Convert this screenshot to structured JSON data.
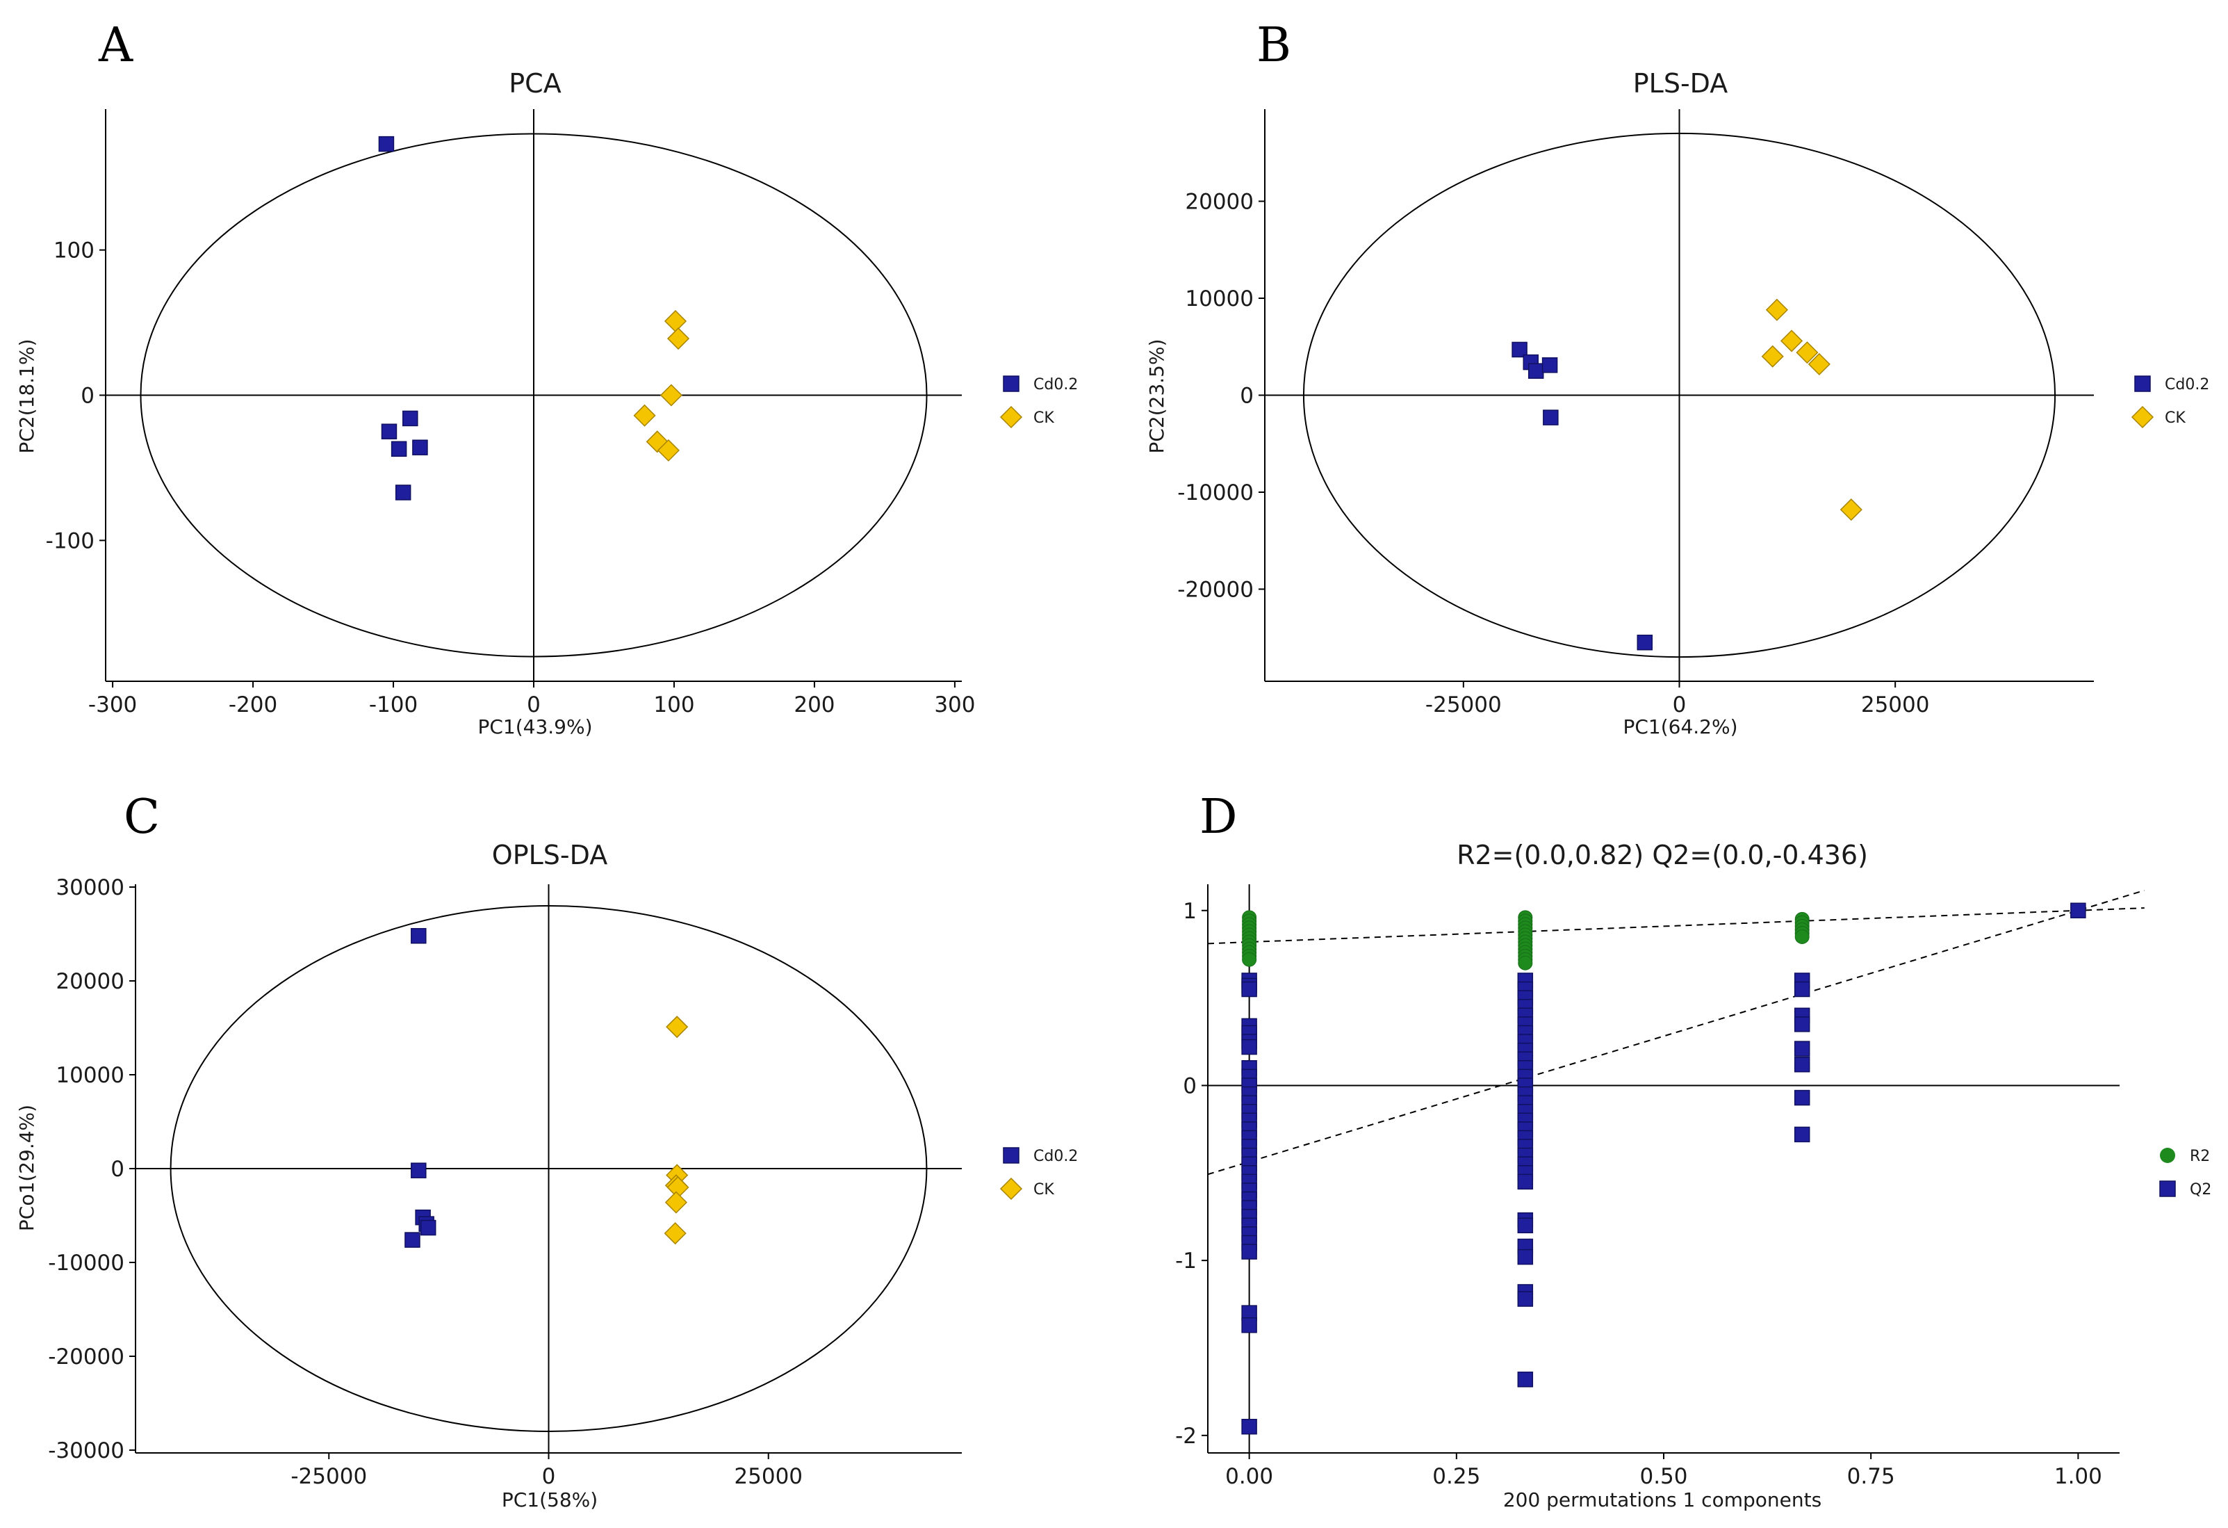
{
  "colors": {
    "cd_fill": "#1f1f9e",
    "cd_stroke": "#101060",
    "ck_fill": "#f5c400",
    "ck_stroke": "#a88400",
    "r2_fill": "#1e8a1e",
    "axis": "#000000"
  },
  "chart_data": [
    {
      "panel": "A",
      "type": "scatter",
      "title": "PCA",
      "xlabel": "PC1(43.9%)",
      "ylabel": "PC2(18.1%)",
      "xlim": [
        -305,
        305
      ],
      "ylim": [
        -197,
        197
      ],
      "xticks": [
        -300,
        -200,
        -100,
        0,
        100,
        200,
        300
      ],
      "yticks": [
        -100,
        0,
        100
      ],
      "ellipse": {
        "cx": 0,
        "cy": 0,
        "rx": 280,
        "ry": 180
      },
      "legend": [
        "Cd0.2",
        "CK"
      ],
      "series": [
        {
          "name": "Cd0.2",
          "marker": "square",
          "points": [
            [
              -105,
              173
            ],
            [
              -103,
              -25
            ],
            [
              -88,
              -16
            ],
            [
              -96,
              -37
            ],
            [
              -81,
              -36
            ],
            [
              -93,
              -67
            ]
          ]
        },
        {
          "name": "CK",
          "marker": "diamond",
          "points": [
            [
              101,
              51
            ],
            [
              103,
              39
            ],
            [
              98,
              0
            ],
            [
              79,
              -14
            ],
            [
              88,
              -32
            ],
            [
              96,
              -38
            ]
          ]
        }
      ]
    },
    {
      "panel": "B",
      "type": "scatter",
      "title": "PLS-DA",
      "xlabel": "PC1(64.2%)",
      "ylabel": "PC2(23.5%)",
      "xlim": [
        -48000,
        48000
      ],
      "ylim": [
        -29500,
        29500
      ],
      "xticks": [
        -25000,
        0,
        25000
      ],
      "yticks": [
        -20000,
        -10000,
        0,
        10000,
        20000
      ],
      "ellipse": {
        "cx": 0,
        "cy": 0,
        "rx": 43500,
        "ry": 27000
      },
      "legend": [
        "Cd0.2",
        "CK"
      ],
      "series": [
        {
          "name": "Cd0.2",
          "marker": "square",
          "points": [
            [
              -18500,
              4700
            ],
            [
              -17200,
              3400
            ],
            [
              -16600,
              2500
            ],
            [
              -15000,
              3100
            ],
            [
              -14900,
              -2300
            ],
            [
              -4000,
              -25500
            ]
          ]
        },
        {
          "name": "CK",
          "marker": "diamond",
          "points": [
            [
              11300,
              8800
            ],
            [
              13000,
              5600
            ],
            [
              10800,
              4000
            ],
            [
              14800,
              4400
            ],
            [
              16200,
              3200
            ],
            [
              19900,
              -11800
            ]
          ]
        }
      ]
    },
    {
      "panel": "C",
      "type": "scatter",
      "title": "OPLS-DA",
      "xlabel": "PC1(58%)",
      "ylabel": "PCo1(29.4%)",
      "xlim": [
        -47000,
        47000
      ],
      "ylim": [
        -30300,
        30300
      ],
      "xticks": [
        -25000,
        0,
        25000
      ],
      "yticks": [
        -30000,
        -20000,
        -10000,
        0,
        10000,
        20000,
        30000
      ],
      "ellipse": {
        "cx": 0,
        "cy": 0,
        "rx": 43000,
        "ry": 28000
      },
      "legend": [
        "Cd0.2",
        "CK"
      ],
      "series": [
        {
          "name": "Cd0.2",
          "marker": "square",
          "points": [
            [
              -14800,
              24800
            ],
            [
              -14800,
              -200
            ],
            [
              -14300,
              -5200
            ],
            [
              -13900,
              -5900
            ],
            [
              -13700,
              -6300
            ],
            [
              -15500,
              -7600
            ]
          ]
        },
        {
          "name": "CK",
          "marker": "diamond",
          "points": [
            [
              14600,
              15100
            ],
            [
              14600,
              -700
            ],
            [
              14500,
              -1800
            ],
            [
              14700,
              -2000
            ],
            [
              14500,
              -3600
            ],
            [
              14400,
              -6900
            ]
          ]
        }
      ]
    },
    {
      "panel": "D",
      "type": "scatter",
      "title": "R2=(0.0,0.82)    Q2=(0.0,-0.436)",
      "xlabel": "200 permutations 1 components",
      "ylabel": "",
      "xlim": [
        -0.05,
        1.05
      ],
      "ylim": [
        -2.1,
        1.15
      ],
      "xticks": [
        0.0,
        0.25,
        0.5,
        0.75,
        1.0
      ],
      "xtick_labels": [
        "0.00",
        "0.25",
        "0.50",
        "0.75",
        "1.00"
      ],
      "yticks": [
        -2,
        -1,
        0,
        1
      ],
      "legend": [
        "R2",
        "Q2"
      ],
      "hline": 0,
      "vline": 0,
      "regression_lines": [
        {
          "name": "R2",
          "intercept": 0.82,
          "slope": 0.18
        },
        {
          "name": "Q2",
          "intercept": -0.436,
          "slope": 1.436
        }
      ],
      "series": [
        {
          "name": "R2",
          "marker": "circle",
          "points": [
            [
              0,
              0.96
            ],
            [
              0,
              0.94
            ],
            [
              0,
              0.92
            ],
            [
              0,
              0.9
            ],
            [
              0,
              0.88
            ],
            [
              0,
              0.86
            ],
            [
              0,
              0.84
            ],
            [
              0,
              0.82
            ],
            [
              0,
              0.8
            ],
            [
              0,
              0.78
            ],
            [
              0,
              0.76
            ],
            [
              0,
              0.74
            ],
            [
              0,
              0.72
            ],
            [
              0.333,
              0.96
            ],
            [
              0.333,
              0.94
            ],
            [
              0.333,
              0.92
            ],
            [
              0.333,
              0.9
            ],
            [
              0.333,
              0.88
            ],
            [
              0.333,
              0.86
            ],
            [
              0.333,
              0.84
            ],
            [
              0.333,
              0.82
            ],
            [
              0.333,
              0.8
            ],
            [
              0.333,
              0.78
            ],
            [
              0.333,
              0.76
            ],
            [
              0.333,
              0.74
            ],
            [
              0.333,
              0.72
            ],
            [
              0.333,
              0.7
            ],
            [
              0.667,
              0.95
            ],
            [
              0.667,
              0.93
            ],
            [
              0.667,
              0.91
            ],
            [
              0.667,
              0.89
            ],
            [
              0.667,
              0.87
            ],
            [
              0.667,
              0.85
            ]
          ]
        },
        {
          "name": "Q2",
          "marker": "square",
          "points": [
            [
              0,
              0.6
            ],
            [
              0,
              0.57
            ],
            [
              0,
              0.55
            ],
            [
              0,
              0.34
            ],
            [
              0,
              0.3
            ],
            [
              0,
              0.25
            ],
            [
              0,
              0.22
            ],
            [
              0,
              0.1
            ],
            [
              0,
              0.05
            ],
            [
              0,
              0.0
            ],
            [
              0,
              -0.05
            ],
            [
              0,
              -0.1
            ],
            [
              0,
              -0.15
            ],
            [
              0,
              -0.2
            ],
            [
              0,
              -0.25
            ],
            [
              0,
              -0.3
            ],
            [
              0,
              -0.35
            ],
            [
              0,
              -0.4
            ],
            [
              0,
              -0.45
            ],
            [
              0,
              -0.5
            ],
            [
              0,
              -0.55
            ],
            [
              0,
              -0.6
            ],
            [
              0,
              -0.65
            ],
            [
              0,
              -0.7
            ],
            [
              0,
              -0.75
            ],
            [
              0,
              -0.8
            ],
            [
              0,
              -0.85
            ],
            [
              0,
              -0.9
            ],
            [
              0,
              -0.95
            ],
            [
              0,
              -1.3
            ],
            [
              0,
              -1.37
            ],
            [
              0,
              -1.95
            ],
            [
              0.333,
              0.6
            ],
            [
              0.333,
              0.55
            ],
            [
              0.333,
              0.5
            ],
            [
              0.333,
              0.45
            ],
            [
              0.333,
              0.4
            ],
            [
              0.333,
              0.35
            ],
            [
              0.333,
              0.3
            ],
            [
              0.333,
              0.25
            ],
            [
              0.333,
              0.2
            ],
            [
              0.333,
              0.15
            ],
            [
              0.333,
              0.1
            ],
            [
              0.333,
              0.05
            ],
            [
              0.333,
              0.0
            ],
            [
              0.333,
              -0.05
            ],
            [
              0.333,
              -0.1
            ],
            [
              0.333,
              -0.15
            ],
            [
              0.333,
              -0.2
            ],
            [
              0.333,
              -0.25
            ],
            [
              0.333,
              -0.3
            ],
            [
              0.333,
              -0.35
            ],
            [
              0.333,
              -0.4
            ],
            [
              0.333,
              -0.45
            ],
            [
              0.333,
              -0.5
            ],
            [
              0.333,
              -0.55
            ],
            [
              0.333,
              -0.77
            ],
            [
              0.333,
              -0.8
            ],
            [
              0.333,
              -0.92
            ],
            [
              0.333,
              -0.98
            ],
            [
              0.333,
              -1.18
            ],
            [
              0.333,
              -1.22
            ],
            [
              0.333,
              -1.68
            ],
            [
              0.667,
              0.6
            ],
            [
              0.667,
              0.55
            ],
            [
              0.667,
              0.4
            ],
            [
              0.667,
              0.35
            ],
            [
              0.667,
              0.21
            ],
            [
              0.667,
              0.12
            ],
            [
              0.667,
              -0.07
            ],
            [
              0.667,
              -0.28
            ],
            [
              1.0,
              1.0
            ]
          ]
        }
      ]
    }
  ]
}
